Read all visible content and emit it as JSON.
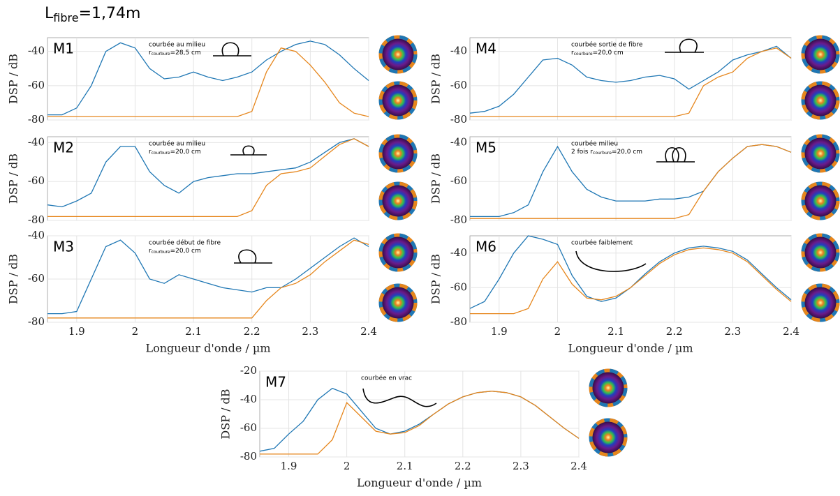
{
  "header": {
    "main": "L",
    "sub": "fibre",
    "rest": "=1,74m"
  },
  "chart_data": [
    {
      "type": "line",
      "label": "M1",
      "ylabel": "DSP / dB",
      "show_xtick_labels": false,
      "annotation": {
        "text": "courbée au milieu",
        "r": "r",
        "r_sub": "courbure",
        "r_value": "=28,5 cm"
      },
      "x": [
        1.85,
        1.875,
        1.9,
        1.925,
        1.95,
        1.975,
        2,
        2.025,
        2.05,
        2.075,
        2.1,
        2.125,
        2.15,
        2.175,
        2.2,
        2.225,
        2.25,
        2.275,
        2.3,
        2.325,
        2.35,
        2.375,
        2.4
      ],
      "xlim": [
        1.85,
        2.4
      ],
      "ylim": [
        -80,
        -32
      ],
      "xticks": [
        1.9,
        2,
        2.1,
        2.2,
        2.3,
        2.4
      ],
      "yticks": [
        -80,
        -60,
        -40
      ],
      "grid": true,
      "series": [
        {
          "color": "#1f77b4",
          "values": [
            -77,
            -77,
            -73,
            -60,
            -40,
            -35,
            -38,
            -50,
            -56,
            -55,
            -52,
            -55,
            -57,
            -55,
            -52,
            -45,
            -40,
            -36,
            -34,
            -36,
            -42,
            -50,
            -57
          ]
        },
        {
          "color": "#e6861c",
          "values": [
            -78,
            -78,
            -78,
            -78,
            -78,
            -78,
            -78,
            -78,
            -78,
            -78,
            -78,
            -78,
            -78,
            -78,
            -75,
            -52,
            -38,
            -40,
            -48,
            -58,
            -70,
            -76,
            -78
          ]
        }
      ]
    },
    {
      "type": "line",
      "label": "M2",
      "ylabel": "DSP / dB",
      "show_xtick_labels": false,
      "annotation": {
        "text": "courbée au milieu",
        "r": "r",
        "r_sub": "courbure",
        "r_value": "=20,0 cm"
      },
      "x": [
        1.85,
        1.875,
        1.9,
        1.925,
        1.95,
        1.975,
        2,
        2.025,
        2.05,
        2.075,
        2.1,
        2.125,
        2.15,
        2.175,
        2.2,
        2.225,
        2.25,
        2.275,
        2.3,
        2.325,
        2.35,
        2.375,
        2.4
      ],
      "xlim": [
        1.85,
        2.4
      ],
      "ylim": [
        -80,
        -37
      ],
      "xticks": [
        1.9,
        2,
        2.1,
        2.2,
        2.3,
        2.4
      ],
      "yticks": [
        -80,
        -60,
        -40
      ],
      "grid": true,
      "series": [
        {
          "color": "#1f77b4",
          "values": [
            -72,
            -73,
            -70,
            -66,
            -50,
            -42,
            -42,
            -55,
            -62,
            -66,
            -60,
            -58,
            -57,
            -56,
            -56,
            -55,
            -54,
            -53,
            -50,
            -45,
            -40,
            -38,
            -42
          ]
        },
        {
          "color": "#e6861c",
          "values": [
            -78,
            -78,
            -78,
            -78,
            -78,
            -78,
            -78,
            -78,
            -78,
            -78,
            -78,
            -78,
            -78,
            -78,
            -75,
            -62,
            -56,
            -55,
            -53,
            -47,
            -41,
            -38,
            -42
          ]
        }
      ]
    },
    {
      "type": "line",
      "label": "M3",
      "ylabel": "DSP / dB",
      "xlabel": "Longueur d'onde / µm",
      "show_xtick_labels": true,
      "annotation": {
        "text": "courbée début de fibre",
        "r": "r",
        "r_sub": "courbure",
        "r_value": "=20,0 cm"
      },
      "x": [
        1.85,
        1.875,
        1.9,
        1.925,
        1.95,
        1.975,
        2,
        2.025,
        2.05,
        2.075,
        2.1,
        2.125,
        2.15,
        2.175,
        2.2,
        2.225,
        2.25,
        2.275,
        2.3,
        2.325,
        2.35,
        2.375,
        2.4
      ],
      "xlim": [
        1.85,
        2.4
      ],
      "ylim": [
        -80,
        -40
      ],
      "xticks": [
        1.9,
        2,
        2.1,
        2.2,
        2.3,
        2.4
      ],
      "yticks": [
        -80,
        -60,
        -40
      ],
      "grid": true,
      "series": [
        {
          "color": "#1f77b4",
          "values": [
            -76,
            -76,
            -75,
            -60,
            -45,
            -42,
            -48,
            -60,
            -62,
            -58,
            -60,
            -62,
            -64,
            -65,
            -66,
            -64,
            -64,
            -60,
            -55,
            -50,
            -45,
            -41,
            -45
          ]
        },
        {
          "color": "#e6861c",
          "values": [
            -78,
            -78,
            -78,
            -78,
            -78,
            -78,
            -78,
            -78,
            -78,
            -78,
            -78,
            -78,
            -78,
            -78,
            -78,
            -70,
            -64,
            -62,
            -58,
            -52,
            -47,
            -42,
            -44
          ]
        }
      ]
    },
    {
      "type": "line",
      "label": "M4",
      "ylabel": "DSP / dB",
      "show_xtick_labels": false,
      "annotation": {
        "text": "courbée sortie de fibre",
        "r": "r",
        "r_sub": "courbure",
        "r_value": "=20,0 cm"
      },
      "x": [
        1.85,
        1.875,
        1.9,
        1.925,
        1.95,
        1.975,
        2,
        2.025,
        2.05,
        2.075,
        2.1,
        2.125,
        2.15,
        2.175,
        2.2,
        2.225,
        2.25,
        2.275,
        2.3,
        2.325,
        2.35,
        2.375,
        2.4
      ],
      "xlim": [
        1.85,
        2.4
      ],
      "ylim": [
        -80,
        -32
      ],
      "xticks": [
        1.9,
        2,
        2.1,
        2.2,
        2.3,
        2.4
      ],
      "yticks": [
        -80,
        -60,
        -40
      ],
      "grid": true,
      "series": [
        {
          "color": "#1f77b4",
          "values": [
            -76,
            -75,
            -72,
            -65,
            -55,
            -45,
            -44,
            -48,
            -55,
            -57,
            -58,
            -57,
            -55,
            -54,
            -56,
            -62,
            -57,
            -52,
            -45,
            -42,
            -40,
            -37,
            -44
          ]
        },
        {
          "color": "#e6861c",
          "values": [
            -78,
            -78,
            -78,
            -78,
            -78,
            -78,
            -78,
            -78,
            -78,
            -78,
            -78,
            -78,
            -78,
            -78,
            -78,
            -76,
            -60,
            -55,
            -52,
            -44,
            -40,
            -38,
            -44
          ]
        }
      ]
    },
    {
      "type": "line",
      "label": "M5",
      "ylabel": "DSP / dB",
      "show_xtick_labels": false,
      "annotation": {
        "text": "courbée milieu",
        "r_prefix": "2 fois ",
        "r": "r",
        "r_sub": "courbure",
        "r_value": "=20,0 cm"
      },
      "x": [
        1.85,
        1.875,
        1.9,
        1.925,
        1.95,
        1.975,
        2,
        2.025,
        2.05,
        2.075,
        2.1,
        2.125,
        2.15,
        2.175,
        2.2,
        2.225,
        2.25,
        2.275,
        2.3,
        2.325,
        2.35,
        2.375,
        2.4
      ],
      "xlim": [
        1.85,
        2.4
      ],
      "ylim": [
        -80,
        -37
      ],
      "xticks": [
        1.9,
        2,
        2.1,
        2.2,
        2.3,
        2.4
      ],
      "yticks": [
        -80,
        -60,
        -40
      ],
      "grid": true,
      "series": [
        {
          "color": "#1f77b4",
          "values": [
            -78,
            -78,
            -78,
            -76,
            -72,
            -55,
            -42,
            -55,
            -64,
            -68,
            -70,
            -70,
            -70,
            -69,
            -69,
            -68,
            -65,
            -55,
            -48,
            -42,
            -41,
            -42,
            -45
          ]
        },
        {
          "color": "#e6861c",
          "values": [
            -79,
            -79,
            -79,
            -79,
            -79,
            -79,
            -79,
            -79,
            -79,
            -79,
            -79,
            -79,
            -79,
            -79,
            -79,
            -77,
            -65,
            -55,
            -48,
            -42,
            -41,
            -42,
            -45
          ]
        }
      ]
    },
    {
      "type": "line",
      "label": "M6",
      "ylabel": "DSP / dB",
      "xlabel": "Longueur d'onde / µm",
      "show_xtick_labels": true,
      "annotation": {
        "text": "courbée faiblement"
      },
      "x": [
        1.85,
        1.875,
        1.9,
        1.925,
        1.95,
        1.975,
        2,
        2.025,
        2.05,
        2.075,
        2.1,
        2.125,
        2.15,
        2.175,
        2.2,
        2.225,
        2.25,
        2.275,
        2.3,
        2.325,
        2.35,
        2.375,
        2.4
      ],
      "xlim": [
        1.85,
        2.4
      ],
      "ylim": [
        -80,
        -30
      ],
      "xticks": [
        1.9,
        2,
        2.1,
        2.2,
        2.3,
        2.4
      ],
      "yticks": [
        -80,
        -60,
        -40
      ],
      "grid": true,
      "series": [
        {
          "color": "#1f77b4",
          "values": [
            -72,
            -68,
            -55,
            -40,
            -30,
            -32,
            -35,
            -53,
            -65,
            -68,
            -66,
            -60,
            -52,
            -45,
            -40,
            -37,
            -36,
            -37,
            -39,
            -44,
            -52,
            -60,
            -67
          ]
        },
        {
          "color": "#e6861c",
          "values": [
            -75,
            -75,
            -75,
            -75,
            -72,
            -55,
            -45,
            -58,
            -66,
            -67,
            -65,
            -60,
            -53,
            -46,
            -41,
            -38,
            -37,
            -38,
            -40,
            -45,
            -53,
            -61,
            -68
          ]
        }
      ]
    },
    {
      "type": "line",
      "label": "M7",
      "ylabel": "DSP / dB",
      "xlabel": "Longueur d'onde / µm",
      "show_xtick_labels": true,
      "annotation": {
        "text": "courbée en vrac"
      },
      "x": [
        1.85,
        1.875,
        1.9,
        1.925,
        1.95,
        1.975,
        2,
        2.025,
        2.05,
        2.075,
        2.1,
        2.125,
        2.15,
        2.175,
        2.2,
        2.225,
        2.25,
        2.275,
        2.3,
        2.325,
        2.35,
        2.375,
        2.4
      ],
      "xlim": [
        1.85,
        2.4
      ],
      "ylim": [
        -80,
        -20
      ],
      "xticks": [
        1.9,
        2,
        2.1,
        2.2,
        2.3,
        2.4
      ],
      "yticks": [
        -80,
        -60,
        -40,
        -20
      ],
      "grid": true,
      "series": [
        {
          "color": "#1f77b4",
          "values": [
            -76,
            -74,
            -64,
            -55,
            -40,
            -32,
            -36,
            -48,
            -60,
            -64,
            -62,
            -57,
            -50,
            -43,
            -38,
            -35,
            -34,
            -35,
            -38,
            -44,
            -52,
            -60,
            -67
          ]
        },
        {
          "color": "#e6861c",
          "values": [
            -78,
            -78,
            -78,
            -78,
            -78,
            -68,
            -42,
            -52,
            -62,
            -64,
            -63,
            -58,
            -50,
            -43,
            -38,
            -35,
            -34,
            -35,
            -38,
            -44,
            -52,
            -60,
            -67
          ]
        }
      ]
    }
  ]
}
